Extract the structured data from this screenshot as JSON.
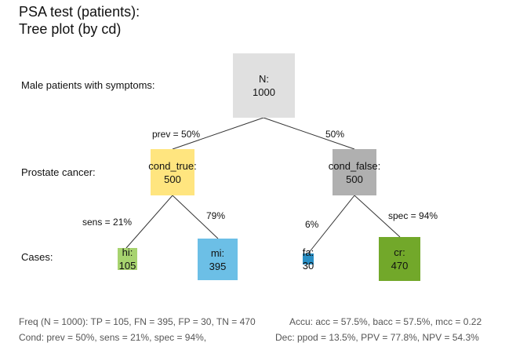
{
  "title": {
    "line1": "PSA test (patients):",
    "line2": "Tree plot (by cd)"
  },
  "row_labels": {
    "population": "Male patients with symptoms:",
    "condition": "Prostate cancer:",
    "cases": "Cases:"
  },
  "nodes": {
    "root": {
      "name": "N:",
      "value": "1000",
      "color": "#e0e0e0"
    },
    "cond_true": {
      "name": "cond_true:",
      "value": "500",
      "color": "#ffe57f"
    },
    "cond_false": {
      "name": "cond_false:",
      "value": "500",
      "color": "#b0b0b0"
    },
    "hi": {
      "name": "hi:",
      "value": "105",
      "color": "#a7d36f"
    },
    "mi": {
      "name": "mi:",
      "value": "395",
      "color": "#6cbfe6"
    },
    "fa": {
      "name": "fa:",
      "value": "30",
      "color": "#2a8fc5"
    },
    "cr": {
      "name": "cr:",
      "value": "470",
      "color": "#72a82a"
    }
  },
  "edge_labels": {
    "prev": "prev = 50%",
    "not_prev": "50%",
    "sens": "sens = 21%",
    "miss_rate": "79%",
    "fa_rate": "6%",
    "spec": "spec = 94%"
  },
  "footer": {
    "freq": "Freq (N = 1000):  TP = 105, FN = 395, FP = 30, TN = 470",
    "cond": "Cond:  prev = 50%, sens = 21%, spec = 94%,",
    "accu": "Accu:  acc = 57.5%, bacc = 57.5%, mcc = 0.22",
    "dec": "Dec:  ppod = 13.5%, PPV = 77.8%, NPV = 54.3%"
  }
}
